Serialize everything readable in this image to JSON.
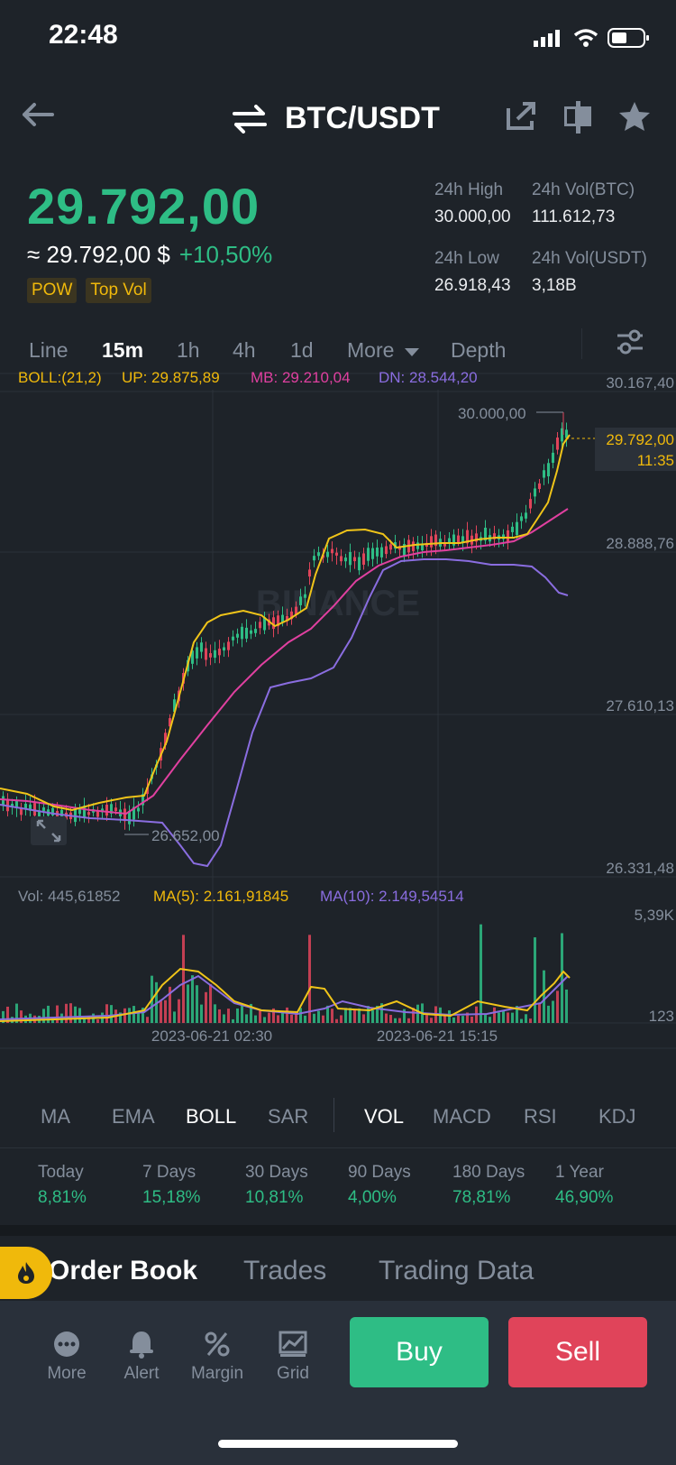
{
  "status": {
    "time": "22:48"
  },
  "header": {
    "pair": "BTC/USDT"
  },
  "price": {
    "last": "29.792,00",
    "fiat": "≈ 29.792,00 $",
    "change": "+10,50%"
  },
  "tags": [
    "POW",
    "Top Vol"
  ],
  "stats": {
    "high_label": "24h High",
    "high": "30.000,00",
    "volbtc_label": "24h Vol(BTC)",
    "volbtc": "111.612,73",
    "low_label": "24h Low",
    "low": "26.918,43",
    "volusdt_label": "24h Vol(USDT)",
    "volusdt": "3,18B"
  },
  "interval_tabs": {
    "line": "Line",
    "m15": "15m",
    "h1": "1h",
    "h4": "4h",
    "d1": "1d",
    "more": "More",
    "depth": "Depth"
  },
  "chart_legend": {
    "boll": "BOLL:(21,2)",
    "up": "UP: 29.875,89",
    "mb": "MB: 29.210,04",
    "dn": "DN: 28.544,20",
    "vol": "Vol: 445,61852",
    "ma5": "MA(5): 2.161,91845",
    "ma10": "MA(10): 2.149,54514"
  },
  "chart_data": {
    "type": "candlestick",
    "y_ticks": [
      "30.167,40",
      "28.888,76",
      "27.610,13",
      "26.331,48"
    ],
    "ylim": [
      26331.48,
      30167.4
    ],
    "annotations": {
      "high": "30.000,00",
      "low": "26.652,00",
      "last_price": "29.792,00",
      "countdown": "11:35"
    },
    "x_ticks": [
      "2023-06-21 02:30",
      "2023-06-21 15:15"
    ],
    "vol_ticks": [
      "5,39K",
      "123"
    ],
    "watermark": "BINANCE",
    "colors": {
      "up": "#2ebd85",
      "down": "#e0445a",
      "boll_up": "#f0c419",
      "boll_mb": "#e040a0",
      "boll_dn": "#8a6de0"
    }
  },
  "indicator_tabs": [
    "MA",
    "EMA",
    "BOLL",
    "SAR",
    "VOL",
    "MACD",
    "RSI",
    "KDJ"
  ],
  "performance": [
    {
      "label": "Today",
      "value": "8,81%"
    },
    {
      "label": "7 Days",
      "value": "15,18%"
    },
    {
      "label": "30 Days",
      "value": "10,81%"
    },
    {
      "label": "90 Days",
      "value": "4,00%"
    },
    {
      "label": "180 Days",
      "value": "78,81%"
    },
    {
      "label": "1 Year",
      "value": "46,90%"
    }
  ],
  "section_tabs": {
    "order_book": "Order Book",
    "trades": "Trades",
    "trading_data": "Trading Data"
  },
  "bottom_bar": {
    "more": "More",
    "alert": "Alert",
    "margin": "Margin",
    "grid": "Grid",
    "buy": "Buy",
    "sell": "Sell"
  }
}
